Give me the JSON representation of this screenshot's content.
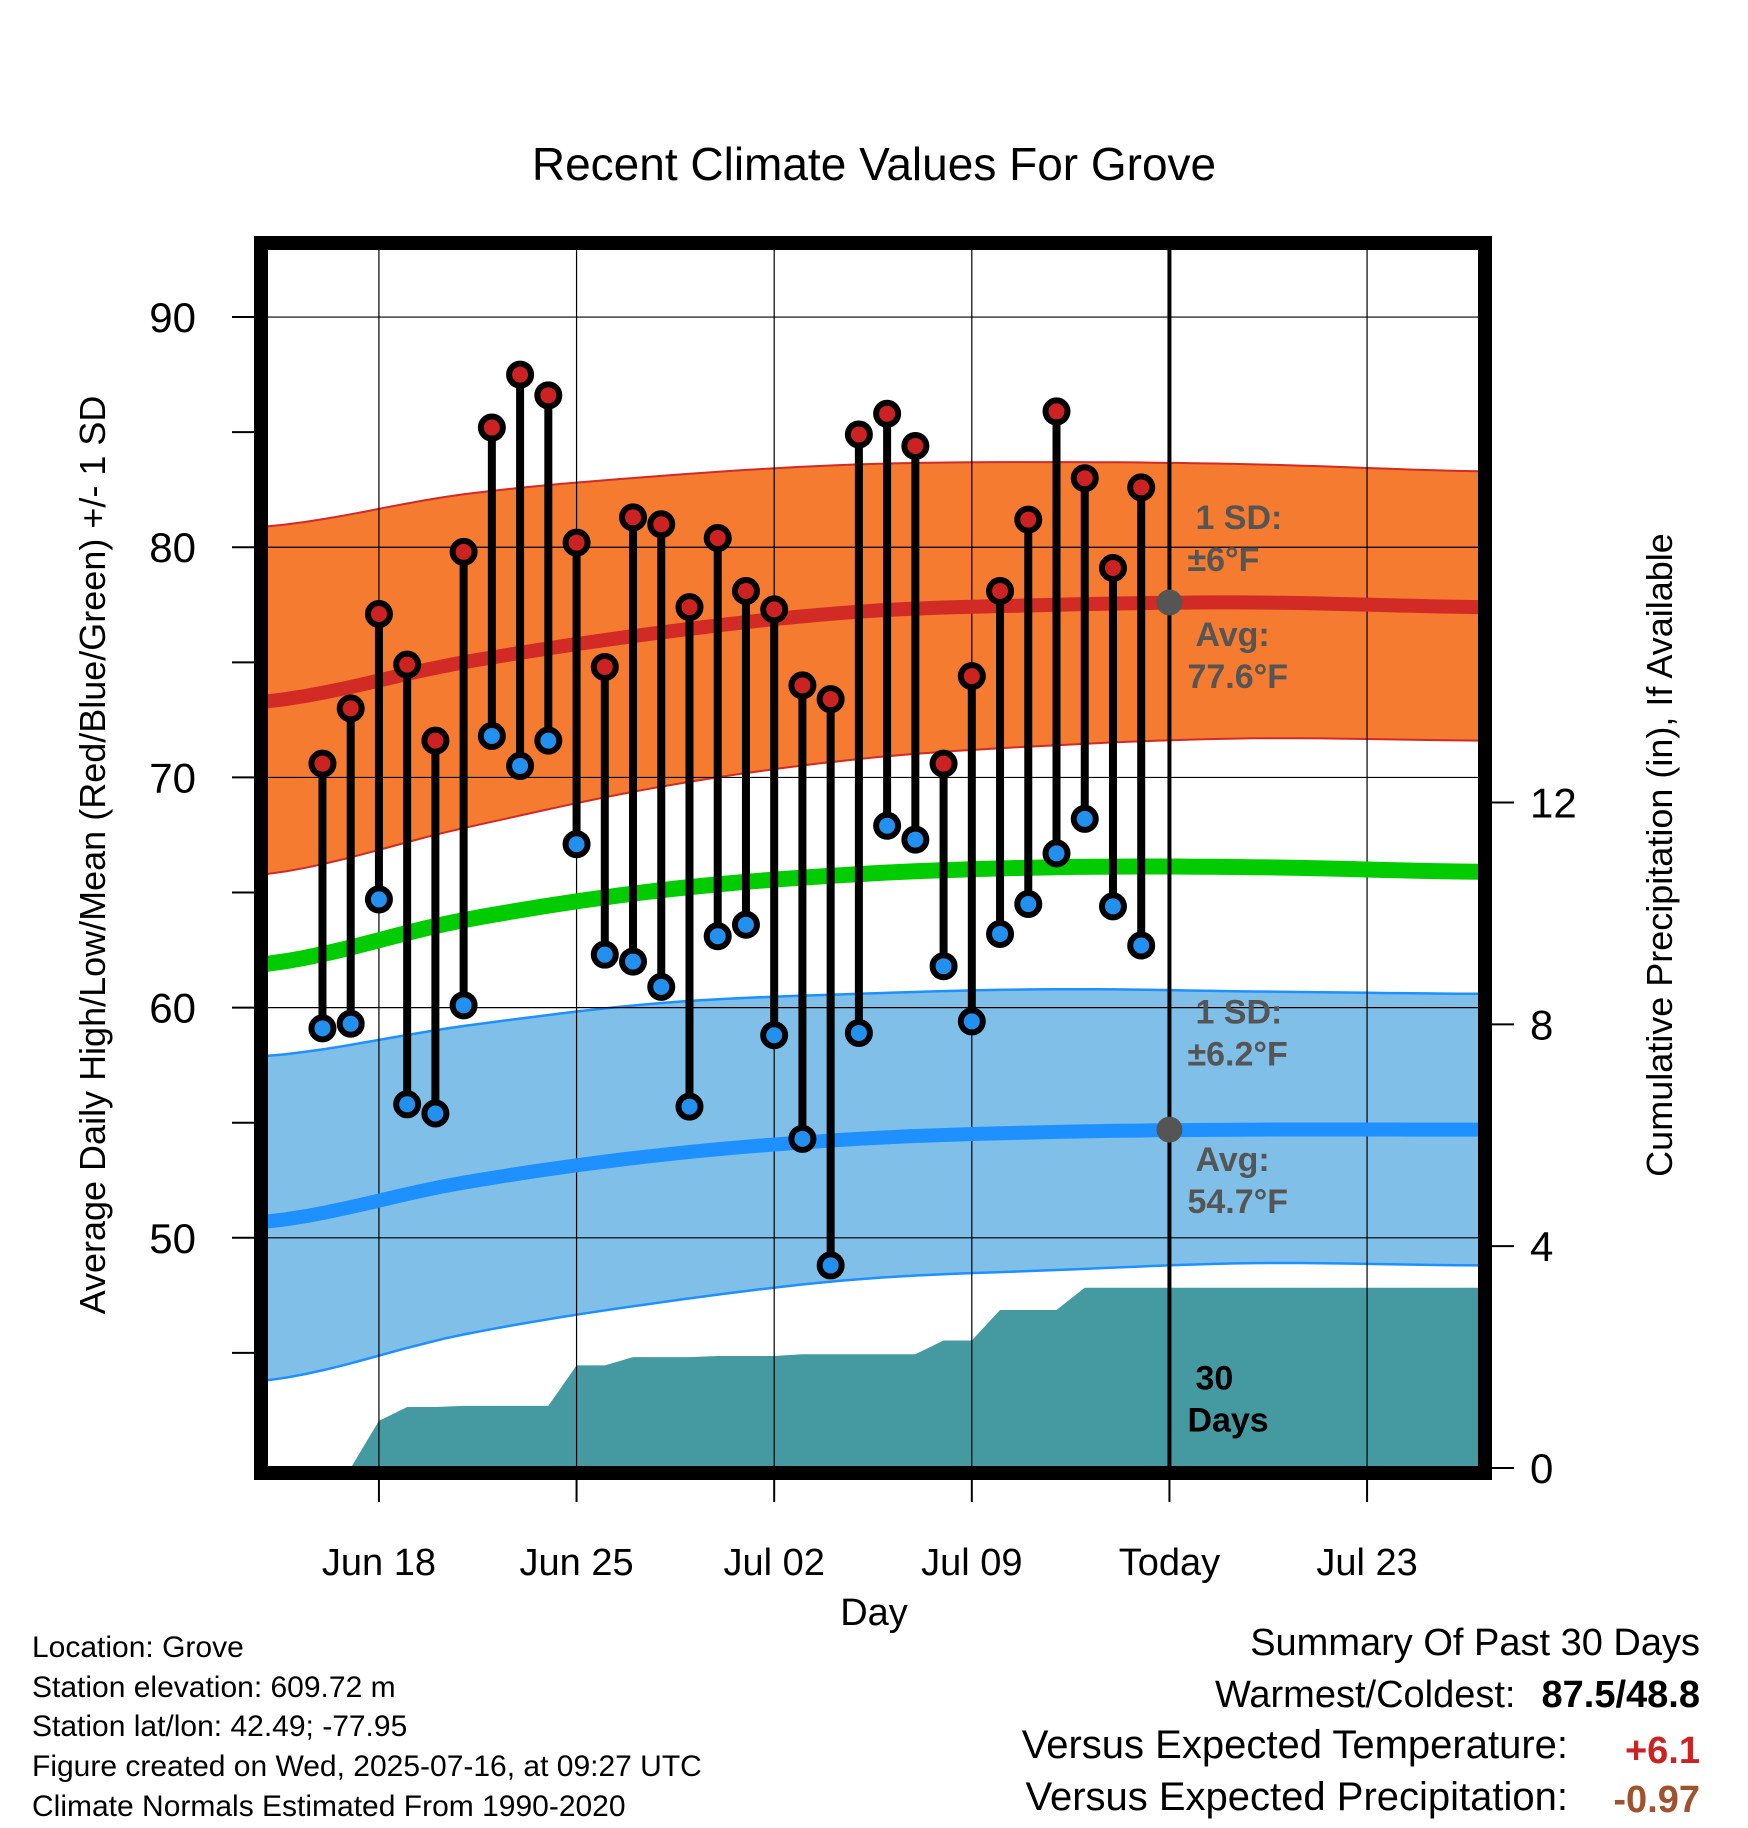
{
  "chart_data": {
    "type": "line",
    "title": "Recent Climate Values For Grove",
    "xlabel": "Day",
    "ylabel_left": "Average Daily High/Low/Mean (Red/Blue/Green) +/- 1 SD",
    "ylabel_right": "Cumulative Precipitation (in), If Available",
    "ylim_left": [
      40,
      93
    ],
    "ylim_right": [
      0,
      22
    ],
    "yticks_left": [
      50,
      60,
      70,
      80,
      90
    ],
    "yticks_right": [
      0,
      4,
      8,
      12
    ],
    "xlim": [
      "2025-06-14",
      "2025-07-27"
    ],
    "xticks": [
      {
        "date": "2025-06-18",
        "label": "Jun 18"
      },
      {
        "date": "2025-06-25",
        "label": "Jun 25"
      },
      {
        "date": "2025-07-02",
        "label": "Jul 02"
      },
      {
        "date": "2025-07-09",
        "label": "Jul 09"
      },
      {
        "date": "2025-07-16",
        "label": "Today"
      },
      {
        "date": "2025-07-23",
        "label": "Jul 23"
      }
    ],
    "daily_obs": {
      "dates": [
        "2025-06-16",
        "2025-06-17",
        "2025-06-18",
        "2025-06-19",
        "2025-06-20",
        "2025-06-21",
        "2025-06-22",
        "2025-06-23",
        "2025-06-24",
        "2025-06-25",
        "2025-06-26",
        "2025-06-27",
        "2025-06-28",
        "2025-06-29",
        "2025-06-30",
        "2025-07-01",
        "2025-07-02",
        "2025-07-03",
        "2025-07-04",
        "2025-07-05",
        "2025-07-06",
        "2025-07-07",
        "2025-07-08",
        "2025-07-09",
        "2025-07-10",
        "2025-07-11",
        "2025-07-12",
        "2025-07-13",
        "2025-07-14",
        "2025-07-15"
      ],
      "high": [
        70.6,
        73.0,
        77.1,
        74.9,
        71.6,
        79.8,
        85.2,
        87.5,
        86.6,
        80.2,
        74.8,
        81.3,
        81.0,
        77.4,
        80.4,
        78.1,
        77.3,
        74.0,
        73.4,
        84.9,
        85.8,
        84.4,
        70.6,
        74.4,
        78.1,
        81.2,
        85.9,
        83.0,
        79.1,
        82.6
      ],
      "low": [
        59.1,
        59.3,
        64.7,
        55.8,
        55.4,
        60.1,
        71.8,
        70.5,
        71.6,
        67.1,
        62.3,
        62.0,
        60.9,
        55.7,
        63.1,
        63.6,
        58.8,
        54.3,
        48.8,
        58.9,
        67.9,
        67.3,
        61.8,
        59.4,
        63.2,
        64.5,
        66.7,
        68.2,
        64.4,
        62.7
      ]
    },
    "normals": {
      "dates": [
        "2025-06-14",
        "2025-06-21",
        "2025-06-28",
        "2025-07-05",
        "2025-07-12",
        "2025-07-19",
        "2025-07-27"
      ],
      "high_avg": [
        73.3,
        75.0,
        76.3,
        77.2,
        77.5,
        77.6,
        77.4
      ],
      "high_sd_upper": [
        80.9,
        82.3,
        83.1,
        83.6,
        83.7,
        83.6,
        83.3
      ],
      "high_sd_lower": [
        65.8,
        67.8,
        69.6,
        70.8,
        71.4,
        71.7,
        71.6
      ],
      "mean_avg": [
        61.9,
        63.8,
        65.1,
        65.8,
        66.1,
        66.1,
        65.9
      ],
      "low_avg": [
        50.7,
        52.4,
        53.6,
        54.3,
        54.6,
        54.7,
        54.7
      ],
      "low_sd_upper": [
        57.9,
        59.2,
        60.2,
        60.6,
        60.8,
        60.7,
        60.6
      ],
      "low_sd_lower": [
        43.8,
        45.8,
        47.2,
        48.2,
        48.6,
        48.9,
        48.8
      ]
    },
    "precip_cumulative": {
      "dates": [
        "2025-06-17",
        "2025-06-18",
        "2025-06-19",
        "2025-06-20",
        "2025-06-21",
        "2025-06-22",
        "2025-06-23",
        "2025-06-24",
        "2025-06-25",
        "2025-06-26",
        "2025-06-27",
        "2025-06-28",
        "2025-06-29",
        "2025-06-30",
        "2025-07-01",
        "2025-07-02",
        "2025-07-03",
        "2025-07-04",
        "2025-07-05",
        "2025-07-06",
        "2025-07-07",
        "2025-07-08",
        "2025-07-09",
        "2025-07-10",
        "2025-07-11",
        "2025-07-12",
        "2025-07-13",
        "2025-07-14",
        "2025-07-15",
        "2025-07-27"
      ],
      "values": [
        0.0,
        0.85,
        1.1,
        1.1,
        1.12,
        1.12,
        1.12,
        1.12,
        1.85,
        1.85,
        2.0,
        2.0,
        2.0,
        2.02,
        2.02,
        2.02,
        2.05,
        2.05,
        2.05,
        2.05,
        2.05,
        2.3,
        2.3,
        2.85,
        2.85,
        2.85,
        3.25,
        3.25,
        3.25,
        3.25
      ]
    },
    "annotations": {
      "high_sd": [
        "1 SD:",
        "±6°F"
      ],
      "high_avg": [
        "Avg:",
        "77.6°F"
      ],
      "low_sd": [
        "1 SD:",
        "±6.2°F"
      ],
      "low_avg": [
        "Avg:",
        "54.7°F"
      ],
      "period": [
        "30",
        "Days"
      ]
    },
    "colors": {
      "high_band": "#f47b30",
      "high_line": "#d22a25",
      "low_band": "#80c0e8",
      "low_line": "#1e90ff",
      "mean_line": "#00cc00",
      "precip": "#459aa2",
      "high_marker": "#cc2222",
      "low_marker": "#2290ee",
      "annotation": "#555555"
    },
    "grid": true
  },
  "footer": {
    "location": "Location: Grove",
    "elevation": "Station elevation: 609.72 m",
    "latlon": "Station lat/lon: 42.49; -77.95",
    "created": "Figure created on Wed, 2025-07-16, at 09:27 UTC",
    "normals": "Climate Normals Estimated From 1990-2020"
  },
  "summary": {
    "title": "Summary Of Past 30 Days",
    "warm_cold_label": "Warmest/Coldest:",
    "warm_value": "87.5",
    "cold_value": "48.8",
    "temp_label": "Versus Expected Temperature:",
    "temp_value": "+6.1",
    "temp_color": "#cc2222",
    "precip_label": "Versus Expected Precipitation:",
    "precip_value": "-0.97",
    "precip_color": "#a0522d"
  }
}
